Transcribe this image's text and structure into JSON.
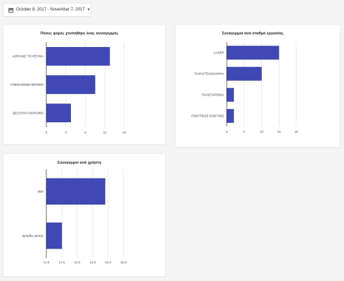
{
  "date_range": {
    "label": "October 8, 2017 - November 7, 2017",
    "icon": "calendar-icon",
    "dropdown_icon": "caret-down-icon"
  },
  "colors": {
    "bar": "#3f48b5",
    "bar_stroke": "#2f379a",
    "grid": "#d9dde9"
  },
  "chart_data": [
    {
      "type": "bar",
      "orientation": "horizontal",
      "title": "Πόσες φορές χτυπήθηκε ένας συναγερμός",
      "categories": [
        "ΑΟΠΛΙΚΕ ΤΟ ΡΕΥΜΑ",
        "ΑΠΕΝΑΖΟΙΜΑ ΒΟΗΘΟ",
        "ΔΕΙΞΟΥΝ ΠΛΗΡΟΦΟ"
      ],
      "values": [
        13,
        10,
        5
      ],
      "xlim": [
        0,
        16
      ],
      "ticks": [
        0,
        4,
        8,
        12,
        16
      ],
      "grid": true
    },
    {
      "type": "bar",
      "orientation": "horizontal",
      "title": "Συναγερμοί ανά σταθμό εργασίας",
      "categories": [
        "LASER",
        "ΠΑΡΑΓΓΕΛΙΟΛΗΨΙΑ",
        "ΠΑΛΕΤΑΡΙΣΜΑ",
        "ΠΟΙΟΤΙΚΟΣ ΕΛΕΓΧΟΣ"
      ],
      "values": [
        15,
        10,
        2,
        2
      ],
      "xlim": [
        0,
        20
      ],
      "ticks": [
        0,
        5,
        10,
        15,
        20
      ],
      "grid": true
    },
    {
      "type": "bar",
      "orientation": "horizontal",
      "title": "Συναγερμοί ανά χρήστη",
      "categories": [
        "titan",
        "ηρορδα_φώτης"
      ],
      "values": [
        15.9,
        14.5
      ],
      "xlim": [
        14,
        16.5
      ],
      "ticks": [
        "14.0",
        "14.5",
        "15.0",
        "15.5",
        "16.0",
        "16.5"
      ],
      "grid": true
    }
  ]
}
